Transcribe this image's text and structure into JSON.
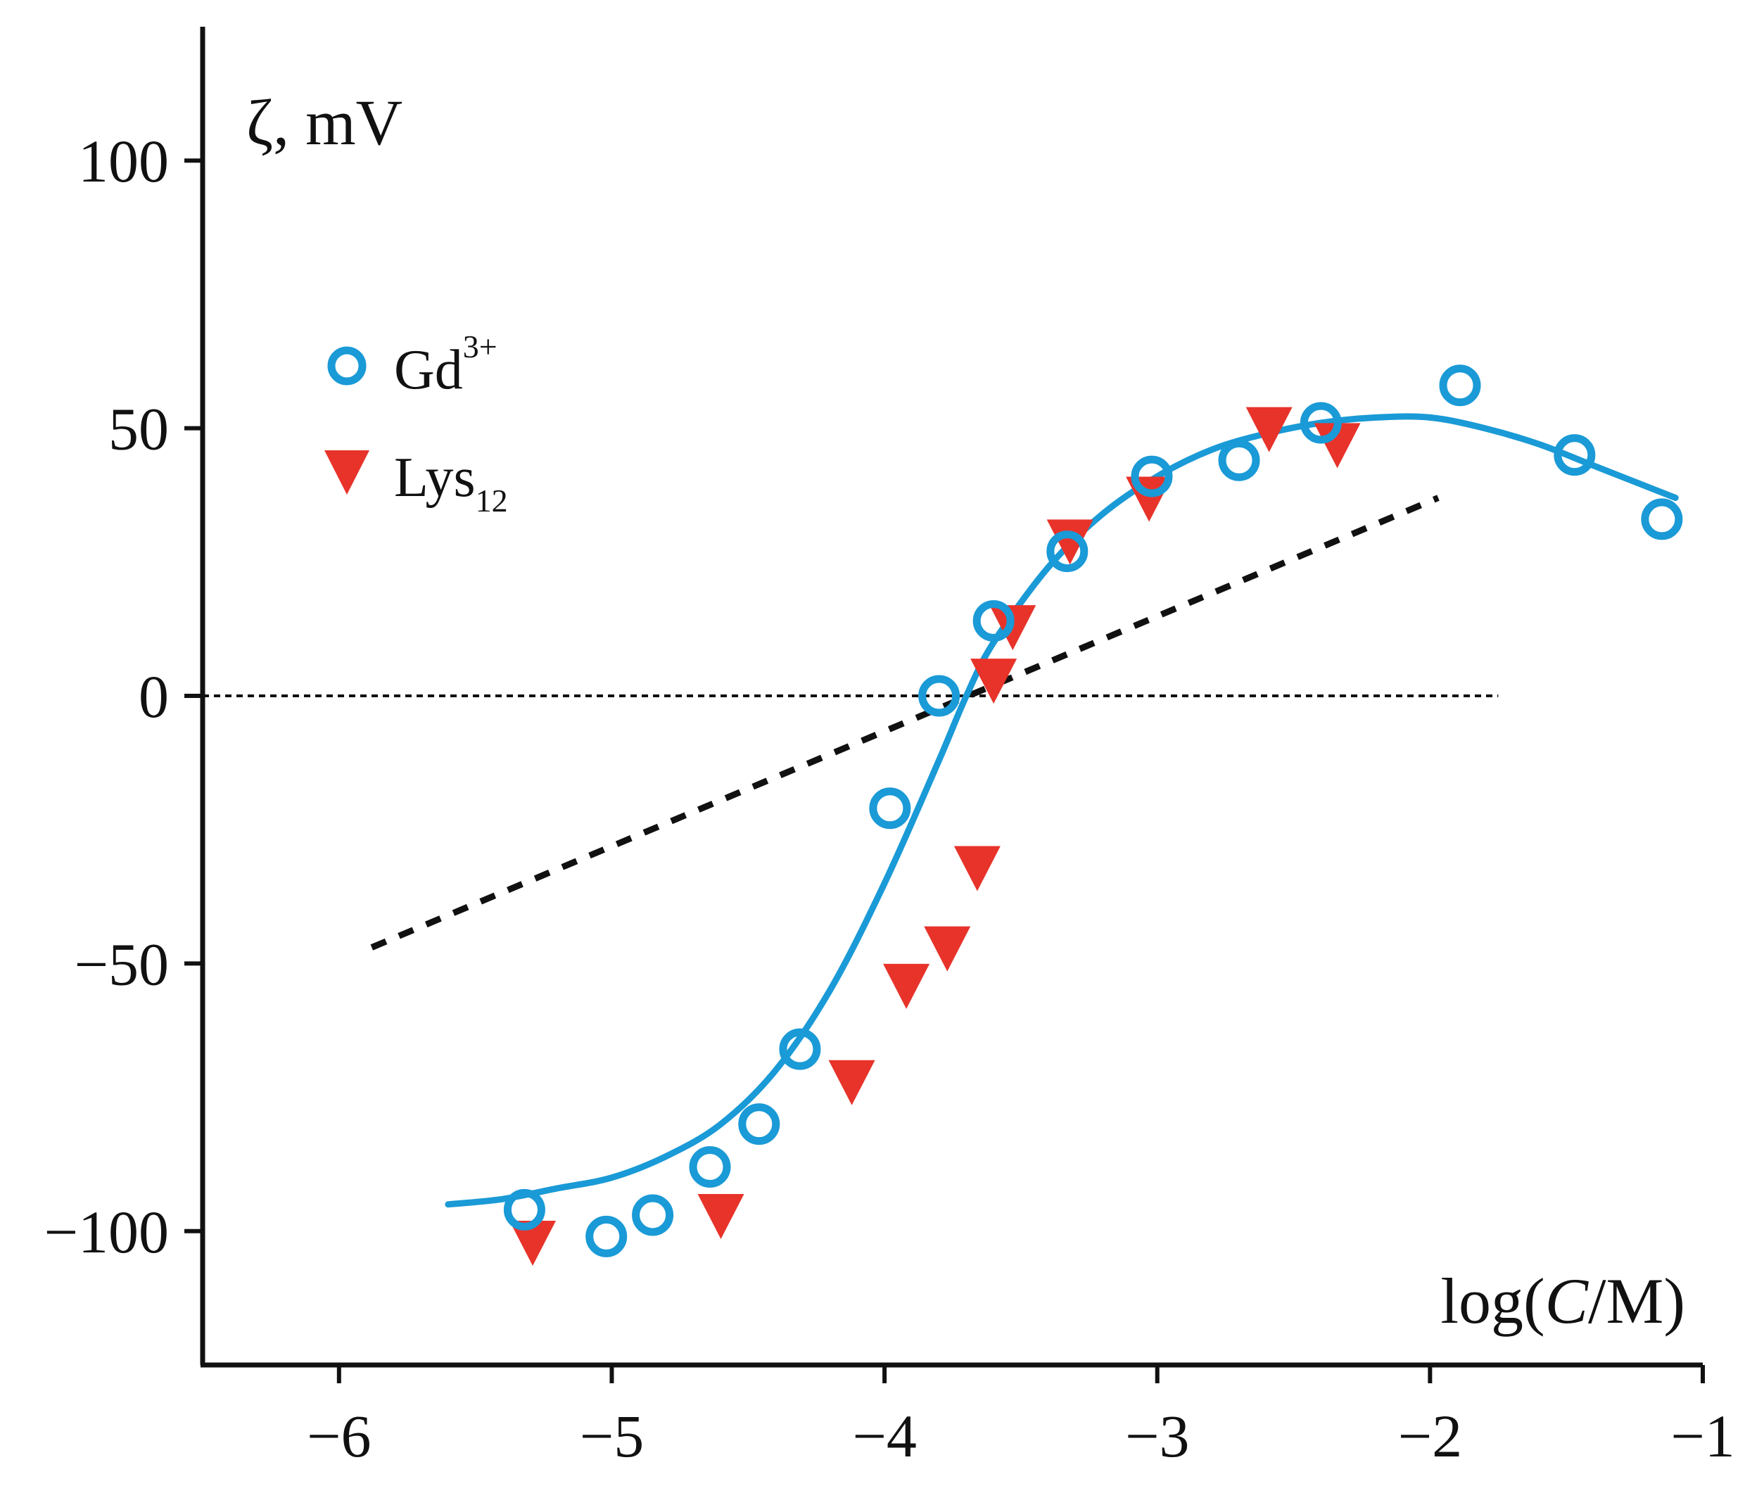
{
  "chart_data": {
    "type": "scatter",
    "ylabel": "ζ, mV",
    "xlabel_parts": [
      "log(",
      "C",
      "/M)"
    ],
    "xlim": [
      -6.5,
      -1
    ],
    "ylim": [
      -125,
      125
    ],
    "x_ticks": [
      -6,
      -5,
      -4,
      -3,
      -2,
      -1
    ],
    "x_tick_labels": [
      "−6",
      "−5",
      "−4",
      "−3",
      "−2",
      "−1"
    ],
    "y_ticks": [
      100,
      50,
      0,
      -50,
      -100
    ],
    "y_tick_labels": [
      "100",
      "50",
      "0",
      "−50",
      "−100"
    ],
    "legend": {
      "position": "top-left"
    },
    "colors": {
      "gd": "#1a9ad6",
      "lys": "#e8332a",
      "axis": "#111111",
      "dotted": "#111111"
    },
    "series": [
      {
        "name": "Gd",
        "name_sup": "3+",
        "marker": "circle-open",
        "x": [
          -5.32,
          -5.02,
          -4.85,
          -4.64,
          -4.46,
          -4.31,
          -3.98,
          -3.8,
          -3.6,
          -3.33,
          -3.02,
          -2.7,
          -2.4,
          -1.89,
          -1.47,
          -1.15
        ],
        "y": [
          -96,
          -101,
          -97,
          -88,
          -80,
          -66,
          -21,
          0,
          14,
          27,
          41,
          44,
          51,
          58,
          45,
          33
        ]
      },
      {
        "name": "Lys",
        "name_sub": "12",
        "marker": "triangle-down-filled",
        "x": [
          -5.29,
          -4.6,
          -4.12,
          -3.92,
          -3.77,
          -3.66,
          -3.6,
          -3.53,
          -3.32,
          -3.03,
          -2.59,
          -2.34
        ],
        "y": [
          -102,
          -97,
          -72,
          -54,
          -47,
          -32,
          3,
          13,
          29,
          37,
          50,
          47
        ]
      }
    ],
    "fit_curve": {
      "series": "Gd",
      "x": [
        -5.6,
        -5.4,
        -5.2,
        -5.0,
        -4.8,
        -4.6,
        -4.4,
        -4.2,
        -4.0,
        -3.8,
        -3.7,
        -3.6,
        -3.4,
        -3.2,
        -3.0,
        -2.8,
        -2.6,
        -2.4,
        -2.2,
        -2.0,
        -1.8,
        -1.6,
        -1.4,
        -1.2,
        -1.1
      ],
      "y": [
        -95,
        -94,
        -92,
        -90,
        -86,
        -80,
        -70,
        -55,
        -35,
        -12,
        0,
        10,
        24,
        34,
        41,
        46,
        49,
        51,
        52,
        52,
        50,
        47,
        43,
        39,
        37
      ]
    },
    "zero_line": {
      "y": 0,
      "x": [
        -6.5,
        -1.75
      ]
    },
    "dashed_line": {
      "x": [
        -5.88,
        -1.97
      ],
      "y": [
        -47,
        37
      ]
    }
  }
}
